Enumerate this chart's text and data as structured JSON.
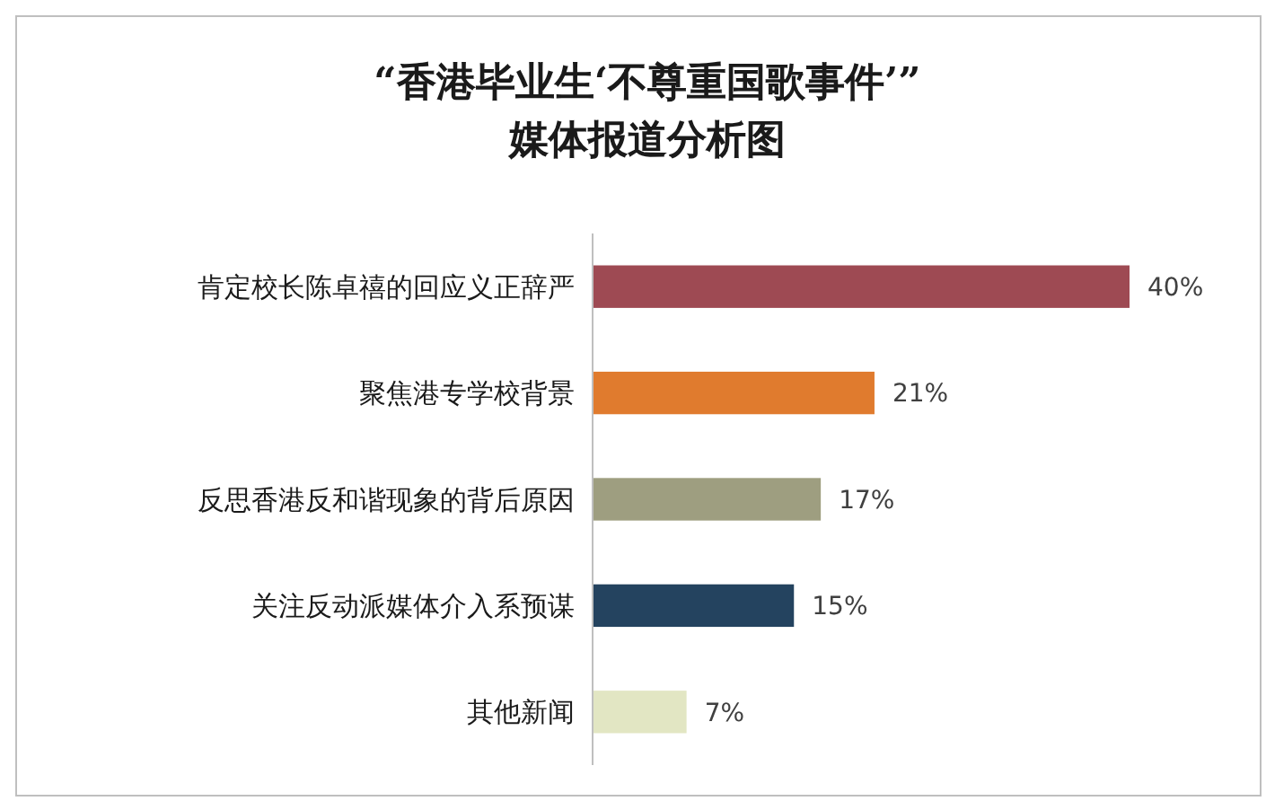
{
  "chart_data": {
    "type": "bar",
    "orientation": "horizontal",
    "title": "“香港毕业生‘不尊重国歌事件’”\n媒体报道分析图",
    "categories": [
      "肯定校长陈卓禧的回应义正辞严",
      "聚焦港专学校背景",
      "反思香港反和谐现象的背后原因",
      "关注反动派媒体介入系预谋",
      "其他新闻"
    ],
    "values": [
      40,
      21,
      17,
      15,
      7
    ],
    "colors": [
      "#9e4a53",
      "#e07b2e",
      "#9e9e80",
      "#24435f",
      "#e2e6c3"
    ],
    "data_labels": true,
    "value_labels": [
      "40%",
      "21%",
      "17%",
      "15%",
      "7%"
    ]
  }
}
